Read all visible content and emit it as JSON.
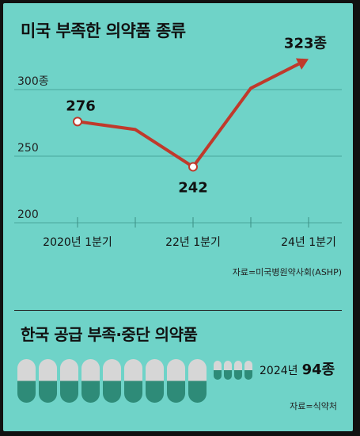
{
  "chart_data": {
    "type": "line",
    "title": "미국 부족한 의약품 종류",
    "x_ticks": [
      {
        "label": "2020년 1분기",
        "index": 0
      },
      {
        "label": "22년 1분기",
        "index": 2
      },
      {
        "label": "24년 1분기",
        "index": 4
      }
    ],
    "x": [
      0,
      1,
      2,
      3,
      4
    ],
    "values": [
      276,
      270,
      242,
      301,
      323
    ],
    "data_labels": [
      {
        "index": 0,
        "text": "276"
      },
      {
        "index": 2,
        "text": "242"
      },
      {
        "index": 4,
        "text": "323종"
      }
    ],
    "y_ticks": [
      {
        "value": 300,
        "label": "300종"
      },
      {
        "value": 250,
        "label": "250"
      },
      {
        "value": 200,
        "label": "200"
      }
    ],
    "ylim": [
      200,
      323
    ],
    "line_color": "#c0392b",
    "grid": true
  },
  "source_top": "자료=미국병원약사회(ASHP)",
  "section2": {
    "title": "한국 공급 부족·중단 의약품",
    "year_label": "2024년",
    "count_label": "94종",
    "count": 94,
    "pill_units": [
      10,
      1
    ],
    "big_pills": 9,
    "small_pills": 4,
    "pill_top_color": "#d6d6d6",
    "pill_bottom_color": "#2e8b78",
    "source": "자료=식약처"
  }
}
